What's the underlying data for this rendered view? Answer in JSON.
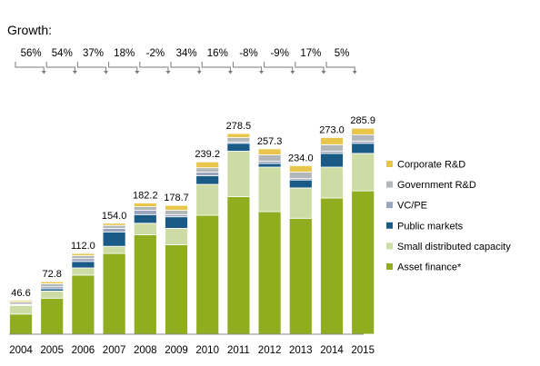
{
  "growth_label": "Growth:",
  "chart_data": {
    "type": "bar",
    "stacked": true,
    "categories": [
      "2004",
      "2005",
      "2006",
      "2007",
      "2008",
      "2009",
      "2010",
      "2011",
      "2012",
      "2013",
      "2014",
      "2015"
    ],
    "totals": [
      "46.6",
      "72.8",
      "112.0",
      "154.0",
      "182.2",
      "178.7",
      "239.2",
      "278.5",
      "257.3",
      "234.0",
      "273.0",
      "285.9"
    ],
    "growth": [
      "56%",
      "54%",
      "37%",
      "18%",
      "-2%",
      "34%",
      "16%",
      "-8%",
      "-9%",
      "17%",
      "5%"
    ],
    "series": [
      {
        "name": "Asset finance*",
        "color": "#8fad1f",
        "values": [
          28.0,
          50.0,
          82.0,
          112.0,
          138.0,
          124.0,
          165.0,
          191.0,
          170.0,
          161.0,
          189.0,
          199.0
        ]
      },
      {
        "name": "Small distributed capacity",
        "color": "#cddca4",
        "values": [
          12.0,
          10.0,
          10.0,
          10.0,
          16.0,
          23.0,
          43.0,
          63.0,
          62.0,
          42.0,
          43.0,
          52.0
        ]
      },
      {
        "name": "Public markets",
        "color": "#1a5a87",
        "values": [
          1.0,
          3.0,
          9.0,
          20.0,
          12.0,
          16.0,
          12.0,
          11.0,
          5.0,
          11.0,
          19.0,
          14.0
        ]
      },
      {
        "name": "VC/PE",
        "color": "#9aa5be",
        "values": [
          0.6,
          3.0,
          4.0,
          5.0,
          6.0,
          3.0,
          5.0,
          2.0,
          3.0,
          2.0,
          3.0,
          3.0
        ]
      },
      {
        "name": "Government R&D",
        "color": "#b4b7ba",
        "values": [
          3.0,
          4.0,
          4.0,
          4.0,
          5.0,
          6.0,
          6.0,
          6.0,
          9.0,
          9.0,
          9.0,
          9.0
        ]
      },
      {
        "name": "Corporate R&D",
        "color": "#e8c64c",
        "values": [
          2.0,
          2.8,
          3.0,
          3.0,
          5.2,
          6.7,
          8.2,
          5.5,
          8.3,
          9.0,
          10.0,
          8.9
        ]
      }
    ],
    "ylim": [
      0,
      300
    ],
    "grid": false,
    "legend": "right"
  }
}
